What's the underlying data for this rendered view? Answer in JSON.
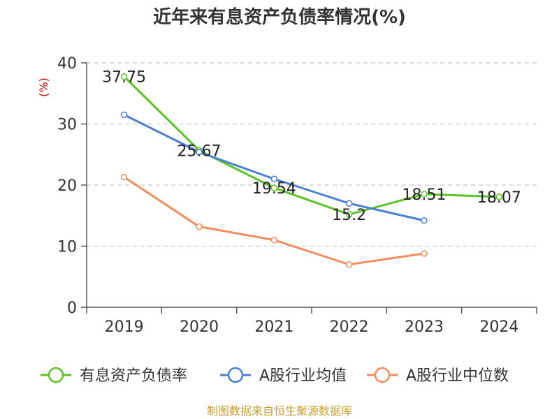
{
  "chart_data": {
    "type": "line",
    "title": "近年来有息资产负债率情况(%)",
    "ylabel": "(%)",
    "categories": [
      "2019",
      "2020",
      "2021",
      "2022",
      "2023",
      "2024"
    ],
    "ylim": [
      0,
      40
    ],
    "yticks": [
      0,
      10,
      20,
      30,
      40
    ],
    "grid": true,
    "legend_position": "bottom",
    "series": [
      {
        "name": "有息资产负债率",
        "color": "#5bc425",
        "values": [
          37.75,
          25.67,
          19.54,
          15.2,
          18.51,
          18.07
        ],
        "labels": [
          "37.75",
          "25.67",
          "19.54",
          "15.2",
          "18.51",
          "18.07"
        ]
      },
      {
        "name": "A股行业均值",
        "color": "#4a7fd8",
        "values": [
          31.5,
          25.4,
          21.0,
          17.0,
          14.2,
          null
        ]
      },
      {
        "name": "A股行业中位数",
        "color": "#f28c5a",
        "values": [
          21.3,
          13.2,
          11.0,
          7.0,
          8.8,
          null
        ]
      }
    ]
  },
  "source_text": "制图数据来自恒生聚源数据库"
}
